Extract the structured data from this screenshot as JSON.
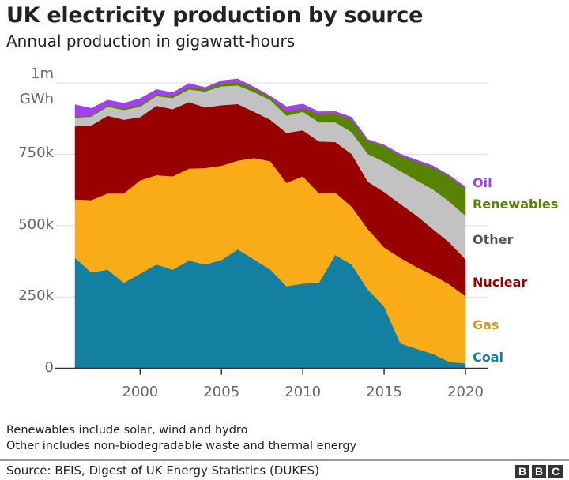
{
  "title": "UK electricity production by source",
  "subtitle": "Annual production in gigawatt-hours",
  "notes": [
    "Renewables include solar, wind and hydro",
    "Other includes non-biodegradable waste and thermal energy"
  ],
  "source": "Source: BEIS, Digest of UK Energy Statistics (DUKES)",
  "logo": {
    "letters": [
      "B",
      "B",
      "C"
    ]
  },
  "chart_data": {
    "type": "area",
    "stacked": true,
    "title": "UK electricity production by source",
    "subtitle": "Annual production in gigawatt-hours",
    "ylabel": "GWh",
    "ylim": [
      0,
      1000000
    ],
    "yticks": [
      {
        "value": 0,
        "label": "0"
      },
      {
        "value": 250000,
        "label": "250k"
      },
      {
        "value": 500000,
        "label": "500k"
      },
      {
        "value": 750000,
        "label": "750k"
      },
      {
        "value": 1000000,
        "label": "1m"
      }
    ],
    "yunit_label": "GWh",
    "xticks": [
      2000,
      2005,
      2010,
      2015,
      2020
    ],
    "xlim": [
      1996,
      2020
    ],
    "grid": true,
    "legend_placement": "right (inline labels)",
    "x": [
      1996,
      1997,
      1998,
      1999,
      2000,
      2001,
      2002,
      2003,
      2004,
      2005,
      2006,
      2007,
      2008,
      2009,
      2010,
      2011,
      2012,
      2013,
      2014,
      2015,
      2016,
      2017,
      2018,
      2019,
      2020
    ],
    "series": [
      {
        "name": "Coal",
        "color": "#1380A1",
        "label_color": "#1380A1",
        "values": [
          387000,
          336000,
          346000,
          300000,
          332000,
          364000,
          346000,
          378000,
          364000,
          380000,
          417000,
          382000,
          346000,
          288000,
          297000,
          301000,
          398000,
          364000,
          276000,
          217000,
          88000,
          69000,
          51000,
          23000,
          18000
        ]
      },
      {
        "name": "Gas",
        "color": "#FAAB18",
        "label_color": "#D39A2B",
        "values": [
          205000,
          254000,
          267000,
          313000,
          327000,
          313000,
          327000,
          322000,
          338000,
          330000,
          311000,
          355000,
          380000,
          362000,
          376000,
          312000,
          218000,
          203000,
          212000,
          207000,
          299000,
          286000,
          276000,
          272000,
          235000
        ]
      },
      {
        "name": "Nuclear",
        "color": "#990000",
        "label_color": "#990000",
        "values": [
          256000,
          261000,
          272000,
          258000,
          221000,
          243000,
          235000,
          233000,
          212000,
          212000,
          198000,
          162000,
          145000,
          175000,
          161000,
          182000,
          177000,
          184000,
          166000,
          194000,
          189000,
          180000,
          161000,
          147000,
          129000
        ]
      },
      {
        "name": "Other",
        "color": "#C2C2C2",
        "label_color": "#555555",
        "values": [
          30000,
          31000,
          32000,
          34000,
          37000,
          34000,
          39000,
          44000,
          56000,
          66000,
          65000,
          69000,
          69000,
          60000,
          65000,
          67000,
          69000,
          77000,
          97000,
          106000,
          115000,
          124000,
          139000,
          143000,
          153000
        ]
      },
      {
        "name": "Renewables",
        "color": "#588300",
        "label_color": "#588300",
        "values": [
          4000,
          4000,
          5000,
          6000,
          6000,
          6000,
          7000,
          8000,
          9000,
          11000,
          12000,
          13000,
          10000,
          14000,
          13000,
          29000,
          32000,
          43000,
          46000,
          55000,
          54000,
          65000,
          78000,
          88000,
          94000
        ]
      },
      {
        "name": "Oil",
        "color": "#A33FF0",
        "label_color": "#A33FF0",
        "values": [
          42000,
          25000,
          18000,
          18000,
          22000,
          17000,
          12000,
          13000,
          5000,
          9000,
          11000,
          5000,
          4000,
          18000,
          14000,
          8000,
          6000,
          9000,
          5000,
          4000,
          6000,
          6000,
          5000,
          4000,
          7000
        ]
      }
    ]
  }
}
